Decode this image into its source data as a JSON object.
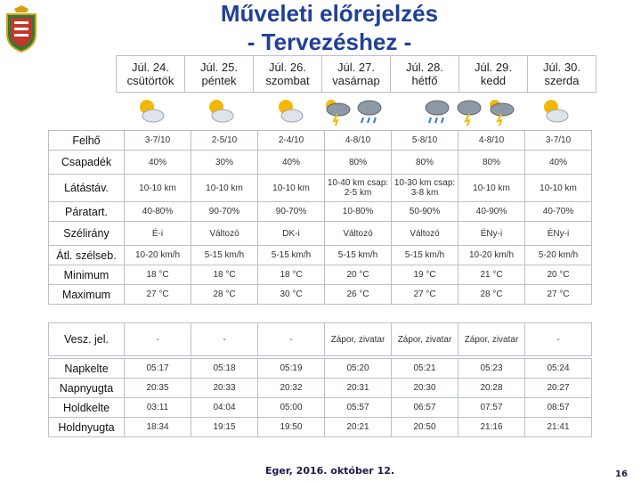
{
  "title": {
    "line1": "Műveleti előrejelzés",
    "line2": "- Tervezéshez -"
  },
  "days": [
    {
      "date": "Júl. 24.",
      "weekday": "csütörtök",
      "icon": "sun-cloud-icon"
    },
    {
      "date": "Júl. 25.",
      "weekday": "péntek",
      "icon": "sun-cloud-icon"
    },
    {
      "date": "Júl. 26.",
      "weekday": "szombat",
      "icon": "sun-cloud-icon"
    },
    {
      "date": "Júl. 27.",
      "weekday": "vasárnap",
      "icon": "thunderstorm-icon"
    },
    {
      "date": "Júl. 28.",
      "weekday": "hétfő",
      "icon": "rain-cloud-icon"
    },
    {
      "date": "Júl. 29.",
      "weekday": "kedd",
      "icon": "thunderstorm-icon"
    },
    {
      "date": "Júl. 30.",
      "weekday": "szerda",
      "icon": "sun-cloud-icon"
    }
  ],
  "weather": {
    "rows": [
      {
        "label": "Felhő",
        "values": [
          "3-7/10",
          "2-5/10",
          "2-4/10",
          "4-8/10",
          "5-8/10",
          "4-8/10",
          "3-7/10"
        ]
      },
      {
        "label": "Csapadék",
        "values": [
          "40%",
          "30%",
          "40%",
          "80%",
          "80%",
          "80%",
          "40%"
        ]
      },
      {
        "label": "Látástáv.",
        "values": [
          "10-10 km",
          "10-10 km",
          "10-10 km",
          "10-40 km csap: 2-5 km",
          "10-30 km csap: 3-8 km",
          "10-10 km",
          "10-10 km"
        ]
      },
      {
        "label": "Páratart.",
        "values": [
          "40-80%",
          "90-70%",
          "90-70%",
          "10-80%",
          "50-90%",
          "40-90%",
          "40-70%"
        ]
      },
      {
        "label": "Szélirány",
        "values": [
          "É-i",
          "Változó",
          "DK-i",
          "Változó",
          "Változó",
          "ÉNy-i",
          "ÉNy-i"
        ]
      },
      {
        "label": "Átl. szélseb.",
        "values": [
          "10-20 km/h",
          "5-15 km/h",
          "5-15 km/h",
          "5-15 km/h",
          "5-15 km/h",
          "10-20 km/h",
          "5-20 km/h"
        ]
      },
      {
        "label": "Minimum",
        "values": [
          "18 °C",
          "18 °C",
          "18 °C",
          "20 °C",
          "19 °C",
          "21 °C",
          "20 °C"
        ]
      },
      {
        "label": "Maximum",
        "values": [
          "27 °C",
          "28 °C",
          "30 °C",
          "26 °C",
          "27 °C",
          "28 °C",
          "27 °C"
        ]
      }
    ]
  },
  "warnings": {
    "label": "Vesz. jel.",
    "values": [
      "-",
      "-",
      "-",
      "Zápor, zivatar",
      "Zápor, zivatar",
      "Zápor, zivatar",
      "-"
    ]
  },
  "astro": {
    "rows": [
      {
        "label": "Napkelte",
        "values": [
          "05:17",
          "05:18",
          "05:19",
          "05:20",
          "05:21",
          "05:23",
          "05:24"
        ]
      },
      {
        "label": "Napnyugta",
        "values": [
          "20:35",
          "20:33",
          "20:32",
          "20:31",
          "20:30",
          "20:28",
          "20:27"
        ]
      },
      {
        "label": "Holdkelte",
        "values": [
          "03:11",
          "04:04",
          "05:00",
          "05:57",
          "06:57",
          "07:57",
          "08:57"
        ]
      },
      {
        "label": "Holdnyugta",
        "values": [
          "18:34",
          "19:15",
          "19:50",
          "20:21",
          "20:50",
          "21:16",
          "21:41"
        ]
      }
    ]
  },
  "footer": {
    "text": "Eger, 2016. október 12.",
    "page": "16"
  },
  "colors": {
    "title": "#1f3f99",
    "border": "#b8bfcc",
    "crest_red": "#c0392b",
    "crest_gold": "#d4a017"
  }
}
